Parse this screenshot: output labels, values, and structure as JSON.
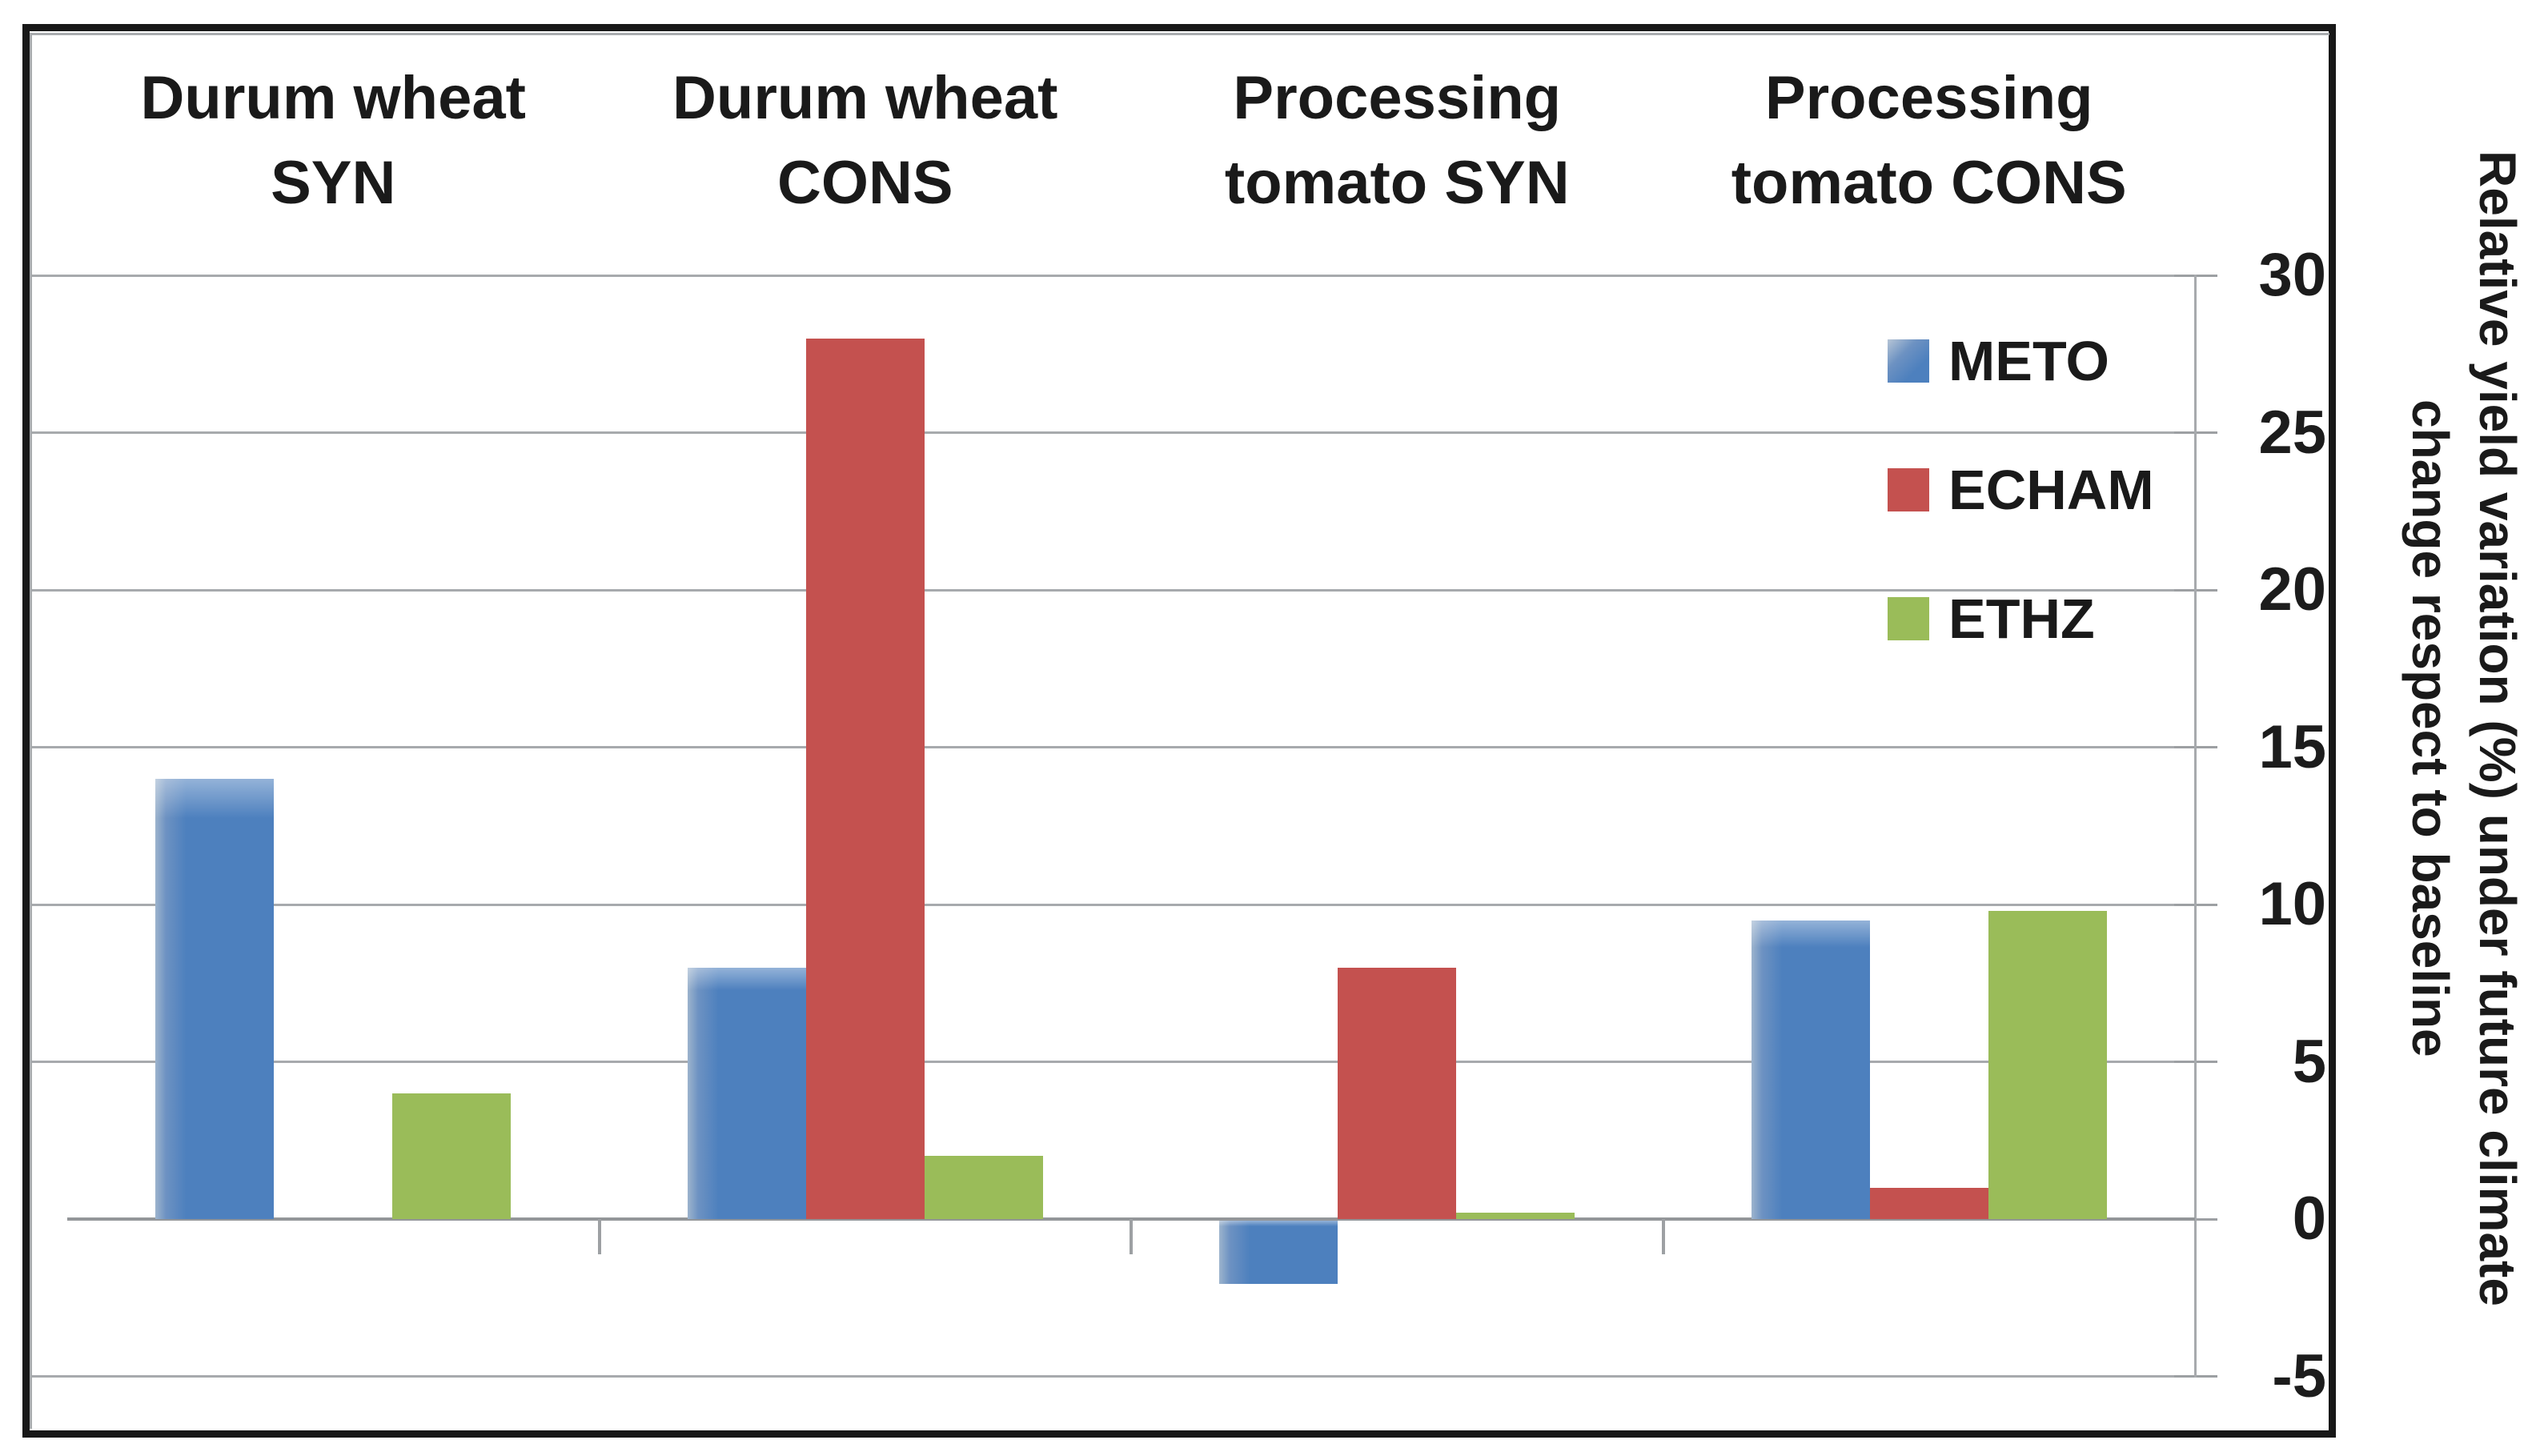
{
  "chart_data": {
    "type": "bar",
    "categories": [
      "Durum wheat SYN",
      "Durum wheat CONS",
      "Processing tomato SYN",
      "Processing tomato CONS"
    ],
    "categories_lines": [
      [
        "Durum wheat",
        "SYN"
      ],
      [
        "Durum wheat",
        "CONS"
      ],
      [
        "Processing",
        "tomato SYN"
      ],
      [
        "Processing",
        "tomato CONS"
      ]
    ],
    "series": [
      {
        "name": "METO",
        "color": "#4d80be",
        "values": [
          14,
          8,
          -2,
          9.5
        ]
      },
      {
        "name": "ECHAM",
        "color": "#c4514f",
        "values": [
          0,
          28,
          8,
          1
        ]
      },
      {
        "name": "ETHZ",
        "color": "#9abc59",
        "values": [
          4,
          2,
          0.2,
          9.8
        ]
      }
    ],
    "ylabel": "Relative yield variation (%) under future climate change respect to baseline",
    "ylabel_lines": [
      "Relative yield variation (%) under future climate",
      "change respect to baseline"
    ],
    "yticks": [
      30,
      25,
      20,
      15,
      10,
      5,
      0,
      -5
    ],
    "ylim": [
      -5,
      30
    ],
    "grid": true,
    "legend_position": "top-right",
    "colors": {
      "grid": "#a7aaad",
      "axis": "#939699",
      "border": "#181818",
      "text": "#1a1a1a"
    }
  }
}
